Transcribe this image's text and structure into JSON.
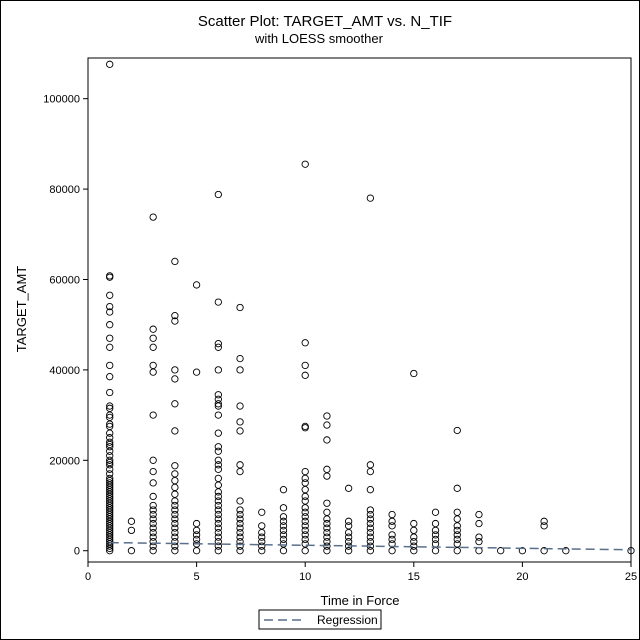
{
  "chart_data": {
    "type": "scatter",
    "title": "Scatter Plot: TARGET_AMT vs. N_TIF",
    "subtitle": "with LOESS smoother",
    "xlabel": "Time in Force",
    "ylabel": "TARGET_AMT",
    "xlim": [
      0,
      25
    ],
    "ylim": [
      -2500,
      109000
    ],
    "xticks": [
      0,
      5,
      10,
      15,
      20,
      25
    ],
    "yticks": [
      0,
      20000,
      40000,
      60000,
      80000,
      100000
    ],
    "grid": false,
    "legend_position": "bottom-center",
    "marker_color": "#000000",
    "regression_color": "#5a6f8a",
    "points": {
      "1": [
        107600,
        60800,
        60500,
        56500,
        54000,
        52800,
        50000,
        47000,
        45000,
        41000,
        38500,
        35000,
        32000,
        31500,
        30000,
        29500,
        28000,
        27500,
        26000,
        25000,
        24000,
        23500,
        23000,
        22000,
        21000,
        20000,
        19500,
        19000,
        18000,
        17000,
        16000,
        15500,
        15000,
        14500,
        14000,
        13500,
        13000,
        12500,
        12000,
        11500,
        11000,
        10500,
        10000,
        9500,
        9000,
        8500,
        8000,
        7500,
        7000,
        6500,
        6000,
        5500,
        5000,
        4500,
        4000,
        3500,
        3000,
        2500,
        2000,
        1500,
        1000,
        500,
        0
      ],
      "2": [
        6500,
        4500,
        0
      ],
      "3": [
        73800,
        49000,
        47000,
        45000,
        41000,
        39500,
        30000,
        20000,
        17500,
        15000,
        12000,
        10000,
        9000,
        8000,
        7000,
        6000,
        5000,
        4000,
        3000,
        2000,
        1000,
        0
      ],
      "4": [
        64000,
        52000,
        50800,
        40000,
        38000,
        32500,
        26500,
        18800,
        17000,
        15500,
        14000,
        12500,
        11000,
        10000,
        9000,
        8000,
        7000,
        6000,
        5000,
        4000,
        3000,
        2000,
        1000,
        0
      ],
      "5": [
        58800,
        39500,
        6000,
        4500,
        3500,
        2500,
        1500,
        0
      ],
      "6": [
        78800,
        55000,
        45800,
        45000,
        40000,
        34500,
        33500,
        32500,
        32000,
        30000,
        26000,
        23000,
        22000,
        20000,
        19000,
        18000,
        16000,
        14500,
        13000,
        12000,
        11000,
        10000,
        9000,
        8000,
        7000,
        6000,
        5000,
        4000,
        3000,
        2000,
        1000,
        0
      ],
      "7": [
        53800,
        42500,
        40000,
        32000,
        28500,
        26500,
        19000,
        17500,
        11000,
        9000,
        8000,
        7000,
        6000,
        5000,
        4000,
        3000,
        2000,
        1000,
        0
      ],
      "8": [
        8500,
        5500,
        4000,
        3000,
        2000,
        1000,
        0
      ],
      "9": [
        13500,
        9500,
        7500,
        6500,
        5500,
        4500,
        3500,
        2500,
        1500,
        0
      ],
      "10": [
        85500,
        46000,
        41000,
        38800,
        27500,
        27200,
        17500,
        16000,
        15000,
        13500,
        12000,
        11000,
        9500,
        8500,
        7500,
        6500,
        5500,
        4500,
        3500,
        2500,
        1500,
        0
      ],
      "11": [
        29800,
        27800,
        24500,
        18000,
        16500,
        10500,
        8500,
        7000,
        6000,
        5000,
        4000,
        3000,
        2000,
        1000,
        0
      ],
      "12": [
        13800,
        6500,
        5500,
        4000,
        3000,
        2000,
        1000,
        0
      ],
      "13": [
        78000,
        19000,
        17500,
        13500,
        9000,
        8000,
        7000,
        6000,
        5000,
        4000,
        3000,
        2000,
        1000,
        0
      ],
      "14": [
        8000,
        6500,
        5500,
        3500,
        2500,
        1500,
        0
      ],
      "15": [
        39200,
        6000,
        4500,
        3000,
        2000,
        1000,
        0
      ],
      "16": [
        8500,
        6000,
        4500,
        3500,
        2500,
        1500,
        0
      ],
      "17": [
        26600,
        13800,
        8500,
        7000,
        5500,
        4500,
        3500,
        2500,
        1500,
        0
      ],
      "18": [
        8000,
        6000,
        3000,
        2000,
        0
      ],
      "19": [
        0
      ],
      "20": [
        0
      ],
      "21": [
        6500,
        5500,
        0
      ],
      "22": [
        0
      ],
      "25": [
        0
      ]
    },
    "regression": {
      "name": "Regression",
      "x": [
        1,
        25
      ],
      "y": [
        1800,
        200
      ]
    }
  }
}
